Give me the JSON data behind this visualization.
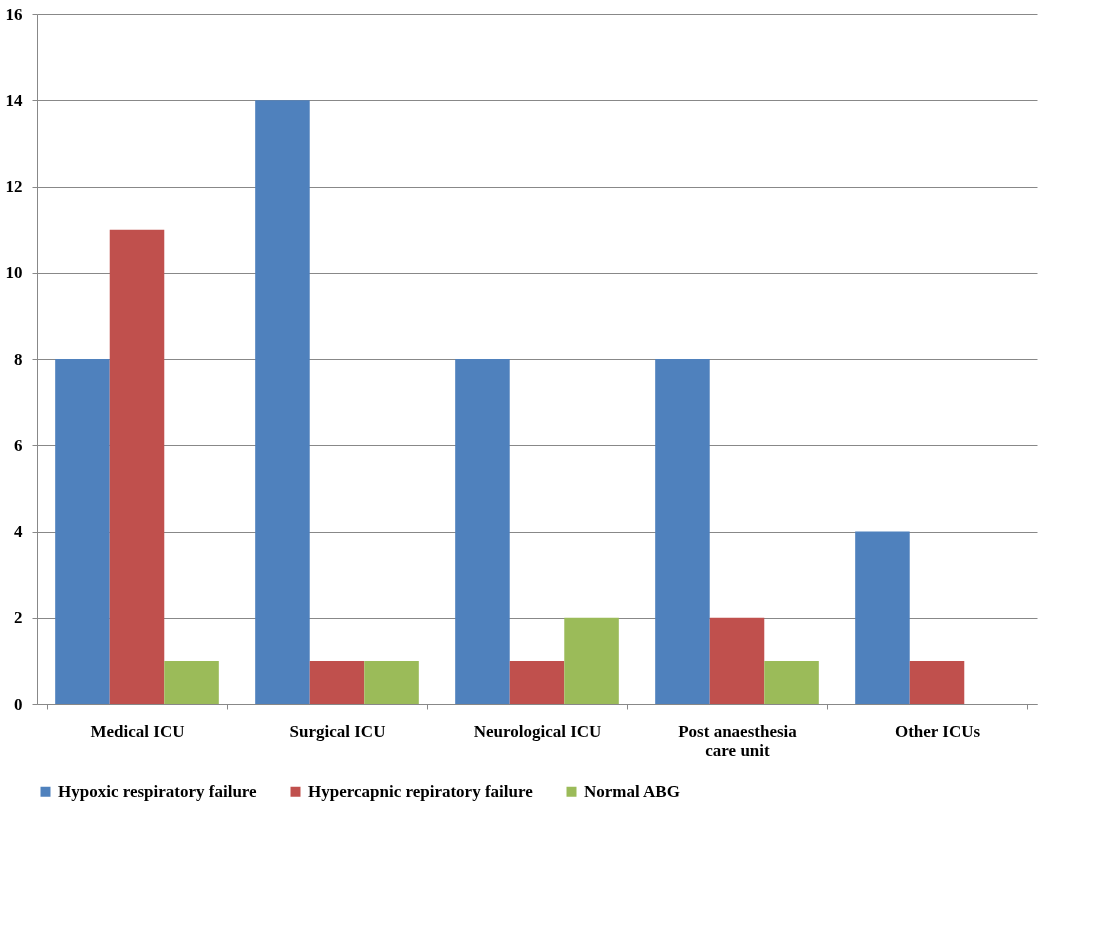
{
  "chart_data": {
    "type": "bar",
    "categories": [
      "Medical ICU",
      "Surgical ICU",
      "Neurological ICU",
      "Post anaesthesia care unit",
      "Other ICUs"
    ],
    "series": [
      {
        "name": "Hypoxic respiratory failure",
        "color": "#4f81bd",
        "values": [
          8,
          14,
          8,
          8,
          4
        ]
      },
      {
        "name": "Hypercapnic repiratory failure",
        "color": "#c0504d",
        "values": [
          11,
          1,
          1,
          2,
          1
        ]
      },
      {
        "name": "Normal ABG",
        "color": "#9bbb59",
        "values": [
          1,
          1,
          2,
          1,
          null
        ]
      }
    ],
    "ylim": [
      0,
      16
    ],
    "yticks": [
      0,
      2,
      4,
      6,
      8,
      10,
      12,
      14,
      16
    ],
    "grid": "y",
    "legend": "bottom"
  }
}
